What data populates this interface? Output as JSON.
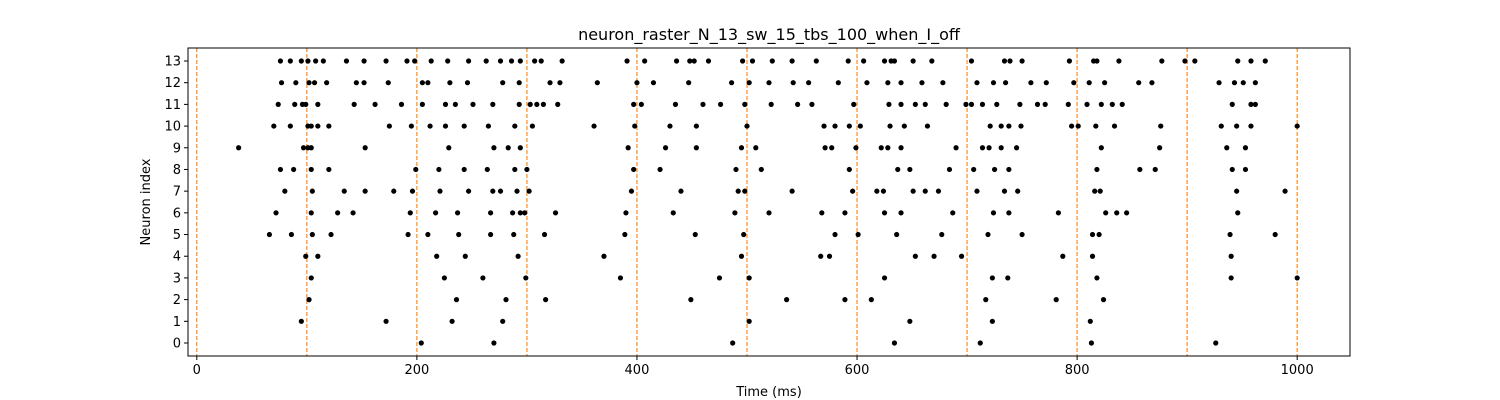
{
  "chart_data": {
    "type": "scatter",
    "title": "neuron_raster_N_13_sw_15_tbs_100_when_I_off",
    "xlabel": "Time (ms)",
    "ylabel": "Neuron index",
    "xlim": [
      -8,
      1048
    ],
    "ylim": [
      -0.6,
      13.6
    ],
    "xticks": [
      0,
      200,
      400,
      600,
      800,
      1000
    ],
    "yticks": [
      0,
      1,
      2,
      3,
      4,
      5,
      6,
      7,
      8,
      9,
      10,
      11,
      12,
      13
    ],
    "grid": false,
    "marker_color": "#000000",
    "vline_color": "#ff7f0e",
    "vlines": [
      0,
      100,
      200,
      300,
      400,
      500,
      600,
      700,
      800,
      900,
      1000
    ],
    "spikes": [
      {
        "neuron": 0,
        "times": [
          204,
          270,
          487,
          634,
          712,
          813,
          926
        ]
      },
      {
        "neuron": 1,
        "times": [
          95,
          172,
          232,
          278,
          502,
          648,
          723,
          812
        ]
      },
      {
        "neuron": 2,
        "times": [
          102,
          236,
          281,
          317,
          449,
          536,
          589,
          613,
          717,
          781,
          824
        ]
      },
      {
        "neuron": 3,
        "times": [
          104,
          225,
          260,
          299,
          385,
          475,
          502,
          625,
          723,
          737,
          818,
          940,
          1000
        ]
      },
      {
        "neuron": 4,
        "times": [
          99,
          110,
          218,
          244,
          292,
          370,
          495,
          567,
          575,
          653,
          670,
          695,
          787,
          814,
          940
        ]
      },
      {
        "neuron": 5,
        "times": [
          66,
          86,
          105,
          122,
          192,
          210,
          238,
          267,
          288,
          316,
          389,
          453,
          497,
          580,
          601,
          636,
          677,
          719,
          750,
          814,
          820,
          939,
          980
        ]
      },
      {
        "neuron": 6,
        "times": [
          72,
          104,
          128,
          142,
          194,
          217,
          237,
          267,
          287,
          294,
          298,
          326,
          390,
          433,
          489,
          520,
          568,
          589,
          625,
          640,
          687,
          724,
          738,
          783,
          826,
          836,
          845,
          946
        ]
      },
      {
        "neuron": 7,
        "times": [
          80,
          105,
          134,
          153,
          179,
          196,
          221,
          247,
          269,
          276,
          291,
          302,
          395,
          440,
          492,
          498,
          541,
          596,
          618,
          624,
          651,
          662,
          674,
          709,
          734,
          746,
          816,
          821,
          945,
          989
        ]
      },
      {
        "neuron": 8,
        "times": [
          76,
          88,
          104,
          120,
          199,
          220,
          243,
          264,
          289,
          300,
          397,
          421,
          490,
          513,
          593,
          637,
          648,
          684,
          706,
          725,
          738,
          818,
          857,
          871,
          941,
          953
        ]
      },
      {
        "neuron": 9,
        "times": [
          38,
          97,
          101,
          104,
          153,
          229,
          270,
          283,
          294,
          392,
          426,
          454,
          495,
          508,
          571,
          577,
          599,
          622,
          628,
          640,
          690,
          714,
          720,
          731,
          745,
          822,
          875,
          936,
          953
        ]
      },
      {
        "neuron": 10,
        "times": [
          70,
          85,
          101,
          104,
          110,
          120,
          175,
          195,
          212,
          226,
          243,
          265,
          289,
          305,
          361,
          398,
          430,
          454,
          500,
          570,
          580,
          593,
          603,
          630,
          643,
          664,
          721,
          731,
          738,
          749,
          795,
          801,
          817,
          834,
          876,
          931,
          945,
          958,
          1000
        ]
      },
      {
        "neuron": 11,
        "times": [
          74,
          89,
          96,
          99,
          110,
          143,
          162,
          186,
          205,
          226,
          235,
          251,
          269,
          293,
          303,
          309,
          315,
          328,
          397,
          404,
          435,
          460,
          476,
          498,
          522,
          546,
          559,
          597,
          629,
          640,
          653,
          662,
          681,
          699,
          704,
          714,
          727,
          748,
          764,
          771,
          792,
          809,
          822,
          832,
          841,
          941,
          958,
          962
        ]
      },
      {
        "neuron": 12,
        "times": [
          77,
          90,
          102,
          107,
          118,
          145,
          152,
          174,
          205,
          210,
          230,
          246,
          278,
          293,
          321,
          330,
          364,
          400,
          415,
          447,
          486,
          502,
          520,
          542,
          556,
          583,
          609,
          628,
          640,
          659,
          678,
          709,
          724,
          735,
          758,
          772,
          797,
          811,
          825,
          856,
          868,
          929,
          943,
          951,
          962
        ]
      },
      {
        "neuron": 13,
        "times": [
          76,
          85,
          95,
          101,
          108,
          115,
          136,
          152,
          172,
          191,
          198,
          213,
          228,
          247,
          263,
          276,
          286,
          294,
          307,
          313,
          332,
          391,
          407,
          436,
          448,
          452,
          465,
          496,
          505,
          523,
          541,
          563,
          592,
          606,
          625,
          631,
          634,
          651,
          668,
          704,
          734,
          739,
          750,
          793,
          815,
          818,
          838,
          877,
          898,
          907,
          946,
          958,
          971
        ]
      }
    ]
  }
}
